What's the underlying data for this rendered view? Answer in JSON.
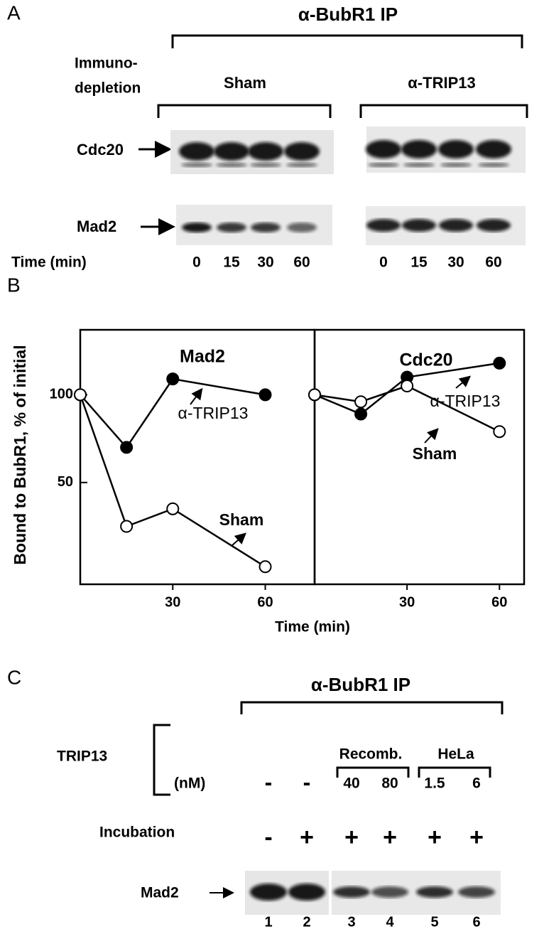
{
  "panel_a": {
    "label": "A",
    "title": "α-BubR1 IP",
    "row_header": [
      "Immuno-",
      "depletion"
    ],
    "groups": [
      "Sham",
      "α-TRIP13"
    ],
    "blots": [
      "Cdc20",
      "Mad2"
    ],
    "time_label": "Time (min)",
    "times": [
      [
        0,
        15,
        30,
        60
      ],
      [
        0,
        15,
        30,
        60
      ]
    ]
  },
  "panel_b": {
    "label": "B",
    "ylabel": "Bound to BubR1, % of initial",
    "xlabel": "Time (min)"
  },
  "chart_data": [
    {
      "type": "line",
      "title": "Mad2",
      "x": [
        0,
        15,
        30,
        60
      ],
      "xlim": [
        0,
        76
      ],
      "xticks": [
        30,
        60
      ],
      "ylim": [
        -8,
        137
      ],
      "yticks": [
        50,
        100
      ],
      "series": [
        {
          "name": "α-TRIP13",
          "color": "#000000",
          "values": [
            100,
            70,
            109,
            100
          ]
        },
        {
          "name": "Sham",
          "color": "#ffffff",
          "values": [
            100,
            25,
            35,
            2
          ]
        }
      ]
    },
    {
      "type": "line",
      "title": "Cdc20",
      "x": [
        0,
        15,
        30,
        60
      ],
      "xlim": [
        0,
        68
      ],
      "xticks": [
        30,
        60
      ],
      "ylim": [
        -8,
        137
      ],
      "series": [
        {
          "name": "α-TRIP13",
          "color": "#000000",
          "values": [
            100,
            89,
            110,
            118
          ]
        },
        {
          "name": "Sham",
          "color": "#ffffff",
          "values": [
            100,
            96,
            105,
            79
          ]
        }
      ]
    }
  ],
  "panel_c": {
    "label": "C",
    "title": "α-BubR1 IP",
    "factor": "TRIP13",
    "sources": [
      "Recomb.",
      "HeLa"
    ],
    "unit": "(nM)",
    "concentrations": [
      "-",
      "-",
      40,
      80,
      1.5,
      6
    ],
    "incubation_label": "Incubation",
    "incubation": [
      "-",
      "+",
      "+",
      "+",
      "+",
      "+"
    ],
    "blot": "Mad2",
    "lanes": [
      1,
      2,
      3,
      4,
      5,
      6
    ]
  }
}
